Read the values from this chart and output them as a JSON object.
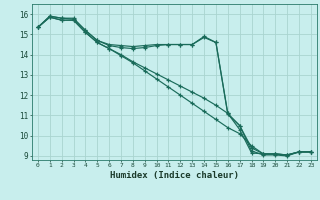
{
  "title": "",
  "xlabel": "Humidex (Indice chaleur)",
  "ylabel": "",
  "background_color": "#c8eeed",
  "grid_color": "#aad4d0",
  "line_color": "#1a6b5a",
  "xlim": [
    -0.5,
    23.5
  ],
  "ylim": [
    8.8,
    16.5
  ],
  "yticks": [
    9,
    10,
    11,
    12,
    13,
    14,
    15,
    16
  ],
  "xticks": [
    0,
    1,
    2,
    3,
    4,
    5,
    6,
    7,
    8,
    9,
    10,
    11,
    12,
    13,
    14,
    15,
    16,
    17,
    18,
    19,
    20,
    21,
    22,
    23
  ],
  "series": [
    {
      "x": [
        0,
        1,
        2,
        3,
        4,
        5,
        6,
        7,
        8,
        9,
        10,
        11,
        12,
        13,
        14,
        15,
        16,
        17,
        18,
        19,
        20,
        21,
        22,
        23
      ],
      "y": [
        15.35,
        15.9,
        15.8,
        15.8,
        15.2,
        14.7,
        14.5,
        14.45,
        14.4,
        14.45,
        14.5,
        14.5,
        14.5,
        14.5,
        14.9,
        14.6,
        11.1,
        10.3,
        9.15,
        9.1,
        9.1,
        9.05,
        9.2,
        9.2
      ]
    },
    {
      "x": [
        0,
        1,
        2,
        3,
        4,
        5,
        6,
        7,
        8,
        9,
        10,
        11,
        12,
        13,
        14,
        15,
        16,
        17,
        18,
        19,
        20,
        21,
        22,
        23
      ],
      "y": [
        15.35,
        15.9,
        15.8,
        15.75,
        15.2,
        14.7,
        14.45,
        14.35,
        14.3,
        14.35,
        14.45,
        14.5,
        14.5,
        14.5,
        14.85,
        14.6,
        11.05,
        10.5,
        9.25,
        9.05,
        9.05,
        9.0,
        9.2,
        9.2
      ]
    },
    {
      "x": [
        0,
        1,
        2,
        3,
        4,
        5,
        6,
        7,
        8,
        9,
        10,
        11,
        12,
        13,
        14,
        15,
        16,
        17,
        18,
        19,
        20,
        21,
        22,
        23
      ],
      "y": [
        15.35,
        15.85,
        15.7,
        15.7,
        15.1,
        14.6,
        14.3,
        14.0,
        13.65,
        13.35,
        13.05,
        12.75,
        12.45,
        12.15,
        11.85,
        11.5,
        11.1,
        10.5,
        9.4,
        9.1,
        9.1,
        9.05,
        9.2,
        9.2
      ]
    },
    {
      "x": [
        0,
        1,
        2,
        3,
        4,
        5,
        6,
        7,
        8,
        9,
        10,
        11,
        12,
        13,
        14,
        15,
        16,
        17,
        18,
        19,
        20,
        21,
        22,
        23
      ],
      "y": [
        15.35,
        15.85,
        15.7,
        15.7,
        15.1,
        14.6,
        14.3,
        13.95,
        13.6,
        13.2,
        12.8,
        12.4,
        12.0,
        11.6,
        11.2,
        10.8,
        10.4,
        10.1,
        9.5,
        9.1,
        9.1,
        9.05,
        9.2,
        9.2
      ]
    }
  ]
}
